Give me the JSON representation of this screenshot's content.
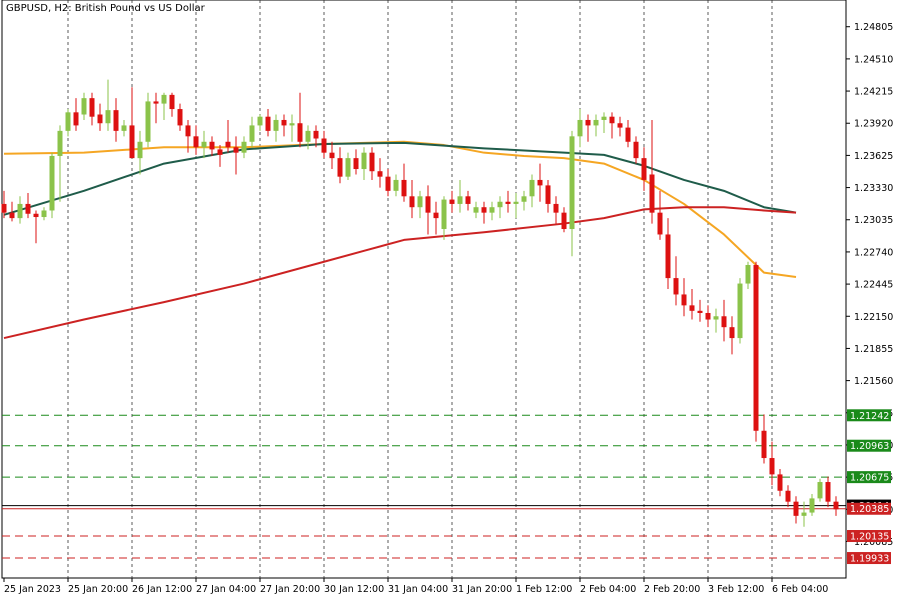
{
  "chart_data": {
    "type": "candlestick",
    "title": "GBPUSD, H2:  British Pound vs US Dollar",
    "ylim": [
      1.1975,
      1.2505
    ],
    "y_ticks": [
      "1.24805",
      "1.24510",
      "1.24215",
      "1.23920",
      "1.23625",
      "1.23330",
      "1.23035",
      "1.22740",
      "1.22445",
      "1.22150",
      "1.21855",
      "1.21560",
      "1.21265",
      "1.20970",
      "1.20675",
      "1.20380",
      "1.20085"
    ],
    "x_ticks": [
      {
        "label": "25 Jan 2023",
        "index": 0
      },
      {
        "label": "25 Jan 20:00",
        "index": 8
      },
      {
        "label": "26 Jan 12:00",
        "index": 16
      },
      {
        "label": "27 Jan 04:00",
        "index": 24
      },
      {
        "label": "27 Jan 20:00",
        "index": 32
      },
      {
        "label": "30 Jan 12:00",
        "index": 40
      },
      {
        "label": "31 Jan 04:00",
        "index": 48
      },
      {
        "label": "31 Jan 20:00",
        "index": 56
      },
      {
        "label": "1 Feb 12:00",
        "index": 64
      },
      {
        "label": "2 Feb 04:00",
        "index": 72
      },
      {
        "label": "2 Feb 20:00",
        "index": 80
      },
      {
        "label": "3 Feb 12:00",
        "index": 88
      },
      {
        "label": "6 Feb 04:00",
        "index": 96
      }
    ],
    "candles": [
      [
        1.2318,
        1.233,
        1.2305,
        1.231
      ],
      [
        1.231,
        1.232,
        1.2302,
        1.2305
      ],
      [
        1.2305,
        1.2325,
        1.23,
        1.2318
      ],
      [
        1.2318,
        1.2328,
        1.2305,
        1.2309
      ],
      [
        1.2309,
        1.2312,
        1.2282,
        1.2306
      ],
      [
        1.2306,
        1.2315,
        1.2303,
        1.2312
      ],
      [
        1.2312,
        1.2365,
        1.2305,
        1.2362
      ],
      [
        1.2362,
        1.239,
        1.232,
        1.2385
      ],
      [
        1.2385,
        1.2405,
        1.238,
        1.2402
      ],
      [
        1.2402,
        1.2415,
        1.2385,
        1.239
      ],
      [
        1.24,
        1.242,
        1.2395,
        1.2415
      ],
      [
        1.2415,
        1.242,
        1.239,
        1.2398
      ],
      [
        1.24,
        1.241,
        1.2385,
        1.2392
      ],
      [
        1.2392,
        1.2432,
        1.2385,
        1.2404
      ],
      [
        1.2404,
        1.2415,
        1.2375,
        1.2385
      ],
      [
        1.2385,
        1.2395,
        1.238,
        1.239
      ],
      [
        1.239,
        1.2425,
        1.236,
        1.236
      ],
      [
        1.236,
        1.2385,
        1.2345,
        1.2375
      ],
      [
        1.2375,
        1.242,
        1.237,
        1.2412
      ],
      [
        1.2412,
        1.242,
        1.2392,
        1.241
      ],
      [
        1.241,
        1.242,
        1.2395,
        1.2418
      ],
      [
        1.2418,
        1.242,
        1.2398,
        1.2405
      ],
      [
        1.2405,
        1.241,
        1.2385,
        1.239
      ],
      [
        1.239,
        1.2395,
        1.2365,
        1.238
      ],
      [
        1.238,
        1.239,
        1.2363,
        1.237
      ],
      [
        1.237,
        1.2385,
        1.236,
        1.2375
      ],
      [
        1.2375,
        1.238,
        1.2362,
        1.2368
      ],
      [
        1.2368,
        1.2372,
        1.2352,
        1.2363
      ],
      [
        1.2375,
        1.2395,
        1.2365,
        1.237
      ],
      [
        1.237,
        1.238,
        1.2345,
        1.2365
      ],
      [
        1.2365,
        1.238,
        1.236,
        1.2375
      ],
      [
        1.2375,
        1.2398,
        1.237,
        1.239
      ],
      [
        1.239,
        1.24,
        1.2385,
        1.2398
      ],
      [
        1.2398,
        1.2405,
        1.238,
        1.2385
      ],
      [
        1.2385,
        1.24,
        1.2375,
        1.2395
      ],
      [
        1.2395,
        1.24,
        1.238,
        1.239
      ],
      [
        1.239,
        1.24,
        1.2375,
        1.2392
      ],
      [
        1.2392,
        1.242,
        1.237,
        1.2375
      ],
      [
        1.2375,
        1.239,
        1.2368,
        1.2385
      ],
      [
        1.2385,
        1.239,
        1.237,
        1.2378
      ],
      [
        1.2378,
        1.2385,
        1.236,
        1.2365
      ],
      [
        1.2365,
        1.2375,
        1.235,
        1.236
      ],
      [
        1.236,
        1.237,
        1.2337,
        1.2343
      ],
      [
        1.2343,
        1.2365,
        1.234,
        1.236
      ],
      [
        1.236,
        1.2368,
        1.2345,
        1.235
      ],
      [
        1.235,
        1.237,
        1.234,
        1.2365
      ],
      [
        1.2365,
        1.237,
        1.234,
        1.2348
      ],
      [
        1.2348,
        1.236,
        1.2333,
        1.2343
      ],
      [
        1.2343,
        1.235,
        1.2325,
        1.233
      ],
      [
        1.233,
        1.2345,
        1.2325,
        1.234
      ],
      [
        1.234,
        1.2355,
        1.232,
        1.2325
      ],
      [
        1.2325,
        1.234,
        1.2305,
        1.2315
      ],
      [
        1.2315,
        1.233,
        1.2305,
        1.2325
      ],
      [
        1.2325,
        1.2335,
        1.229,
        1.231
      ],
      [
        1.231,
        1.232,
        1.229,
        1.2305
      ],
      [
        1.2295,
        1.2325,
        1.2285,
        1.2322
      ],
      [
        1.2322,
        1.233,
        1.231,
        1.2318
      ],
      [
        1.2318,
        1.234,
        1.231,
        1.2325
      ],
      [
        1.2325,
        1.233,
        1.2312,
        1.2318
      ],
      [
        1.231,
        1.232,
        1.2305,
        1.2315
      ],
      [
        1.2315,
        1.232,
        1.23,
        1.231
      ],
      [
        1.231,
        1.232,
        1.2303,
        1.2315
      ],
      [
        1.2315,
        1.2325,
        1.2305,
        1.232
      ],
      [
        1.232,
        1.233,
        1.231,
        1.2318
      ],
      [
        1.2318,
        1.2328,
        1.2305,
        1.232
      ],
      [
        1.232,
        1.233,
        1.2312,
        1.2325
      ],
      [
        1.2325,
        1.2345,
        1.2315,
        1.234
      ],
      [
        1.234,
        1.2355,
        1.232,
        1.2335
      ],
      [
        1.2335,
        1.234,
        1.231,
        1.2318
      ],
      [
        1.2318,
        1.2325,
        1.23,
        1.231
      ],
      [
        1.231,
        1.2315,
        1.2292,
        1.2295
      ],
      [
        1.2295,
        1.2385,
        1.227,
        1.238
      ],
      [
        1.238,
        1.2405,
        1.237,
        1.2395
      ],
      [
        1.2395,
        1.24,
        1.2375,
        1.239
      ],
      [
        1.239,
        1.24,
        1.238,
        1.2395
      ],
      [
        1.2395,
        1.2402,
        1.2383,
        1.2398
      ],
      [
        1.2398,
        1.2402,
        1.2378,
        1.2392
      ],
      [
        1.2392,
        1.2398,
        1.238,
        1.2388
      ],
      [
        1.2388,
        1.2395,
        1.237,
        1.2375
      ],
      [
        1.2375,
        1.238,
        1.2355,
        1.236
      ],
      [
        1.236,
        1.237,
        1.233,
        1.234
      ],
      [
        1.2345,
        1.2395,
        1.23,
        1.231
      ],
      [
        1.231,
        1.233,
        1.2285,
        1.229
      ],
      [
        1.229,
        1.2305,
        1.224,
        1.225
      ],
      [
        1.225,
        1.227,
        1.2225,
        1.2235
      ],
      [
        1.2235,
        1.225,
        1.2215,
        1.2225
      ],
      [
        1.2225,
        1.224,
        1.2212,
        1.222
      ],
      [
        1.222,
        1.223,
        1.221,
        1.2218
      ],
      [
        1.2218,
        1.2225,
        1.2205,
        1.2212
      ],
      [
        1.2212,
        1.2222,
        1.22,
        1.2215
      ],
      [
        1.2215,
        1.223,
        1.2192,
        1.2205
      ],
      [
        1.2205,
        1.2215,
        1.218,
        1.2195
      ],
      [
        1.2195,
        1.225,
        1.219,
        1.2245
      ],
      [
        1.2245,
        1.2265,
        1.224,
        1.2262
      ],
      [
        1.2262,
        1.2265,
        1.21,
        1.211
      ],
      [
        1.211,
        1.2125,
        1.208,
        1.2085
      ],
      [
        1.2085,
        1.21,
        1.206,
        1.207
      ],
      [
        1.207,
        1.2075,
        1.205,
        1.2055
      ],
      [
        1.2055,
        1.206,
        1.204,
        1.2045
      ],
      [
        1.2045,
        1.205,
        1.2025,
        1.2032
      ],
      [
        1.2032,
        1.2045,
        1.2022,
        1.2035
      ],
      [
        1.2035,
        1.2052,
        1.2032,
        1.2048
      ],
      [
        1.2048,
        1.2066,
        1.2045,
        1.2063
      ],
      [
        1.2063,
        1.2068,
        1.204,
        1.2045
      ],
      [
        1.2045,
        1.205,
        1.2032,
        1.2038
      ]
    ],
    "moving_averages": [
      {
        "color": "#f5a623",
        "values": [
          [
            0,
            1.2364
          ],
          [
            10,
            1.2365
          ],
          [
            20,
            1.237
          ],
          [
            30,
            1.237
          ],
          [
            40,
            1.2373
          ],
          [
            50,
            1.2375
          ],
          [
            55,
            1.2372
          ],
          [
            60,
            1.2365
          ],
          [
            65,
            1.2362
          ],
          [
            70,
            1.236
          ],
          [
            75,
            1.2355
          ],
          [
            80,
            1.234
          ],
          [
            85,
            1.2318
          ],
          [
            90,
            1.229
          ],
          [
            95,
            1.2255
          ],
          [
            99,
            1.2251
          ]
        ]
      },
      {
        "color": "#1f5c4a",
        "values": [
          [
            0,
            1.2308
          ],
          [
            10,
            1.233
          ],
          [
            20,
            1.2355
          ],
          [
            30,
            1.2368
          ],
          [
            40,
            1.2373
          ],
          [
            50,
            1.2374
          ],
          [
            60,
            1.2369
          ],
          [
            70,
            1.2365
          ],
          [
            75,
            1.2363
          ],
          [
            80,
            1.2353
          ],
          [
            85,
            1.234
          ],
          [
            90,
            1.233
          ],
          [
            95,
            1.2315
          ],
          [
            99,
            1.231
          ]
        ]
      },
      {
        "color": "#cc2222",
        "values": [
          [
            0,
            1.2195
          ],
          [
            10,
            1.2212
          ],
          [
            20,
            1.2228
          ],
          [
            30,
            1.2245
          ],
          [
            40,
            1.2265
          ],
          [
            45,
            1.2275
          ],
          [
            50,
            1.2285
          ],
          [
            60,
            1.2292
          ],
          [
            70,
            1.23
          ],
          [
            75,
            1.2305
          ],
          [
            80,
            1.2313
          ],
          [
            85,
            1.2315
          ],
          [
            90,
            1.2315
          ],
          [
            95,
            1.2312
          ],
          [
            99,
            1.231
          ]
        ]
      }
    ],
    "levels": [
      {
        "value": 1.21242,
        "label": "1.21242",
        "color": "#1a8a1a",
        "style": "dashed"
      },
      {
        "value": 1.20963,
        "label": "1.20963",
        "color": "#1a8a1a",
        "style": "dashed"
      },
      {
        "value": 1.20675,
        "label": "1.20675",
        "color": "#1a8a1a",
        "style": "dashed"
      },
      {
        "value": 1.20414,
        "label": "1.20414",
        "color": "#000000",
        "style": "solid"
      },
      {
        "value": 1.20385,
        "label": "1.20385",
        "color": "#cc2222",
        "style": "solid"
      },
      {
        "value": 1.20135,
        "label": "1.20135",
        "color": "#cc2222",
        "style": "dashed"
      },
      {
        "value": 1.19933,
        "label": "1.19933",
        "color": "#cc2222",
        "style": "dashed"
      }
    ],
    "colors": {
      "bull": "#8bc34a",
      "bear": "#dd1111",
      "grid": "#333333",
      "axis": "#000000",
      "background": "#ffffff"
    },
    "grid": "vertical-dashed"
  }
}
